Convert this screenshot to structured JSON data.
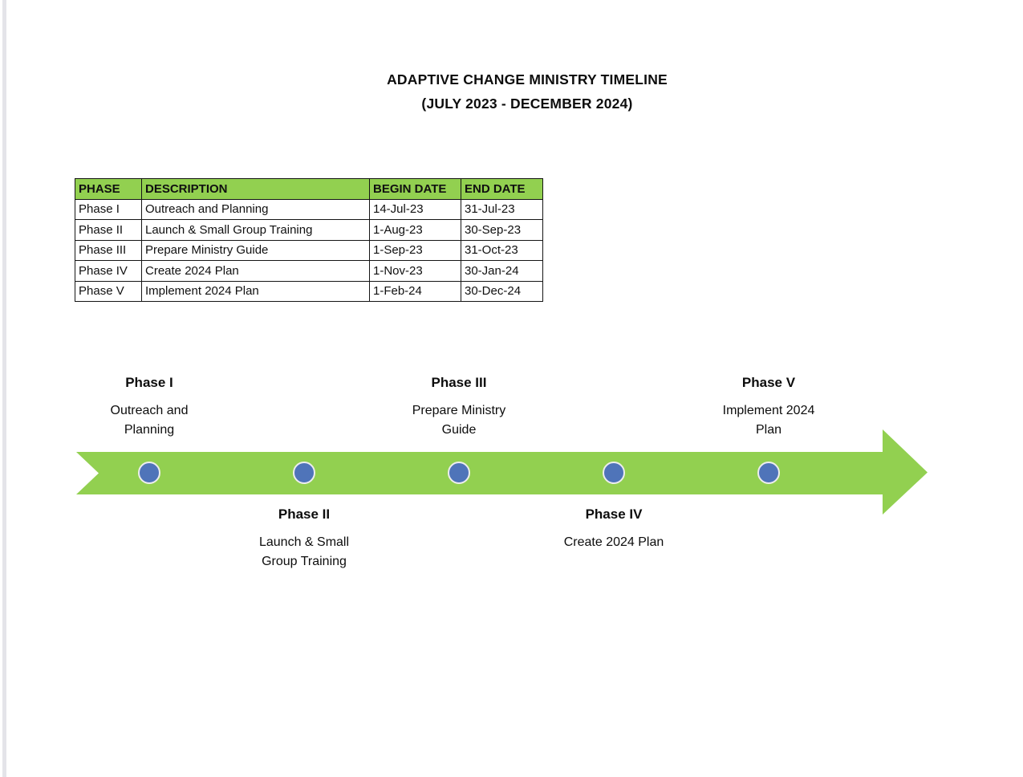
{
  "page": {
    "title_line1": "ADAPTIVE CHANGE MINISTRY TIMELINE",
    "title_line2": "(JULY 2023 - DECEMBER 2024)"
  },
  "table": {
    "headers": [
      "PHASE",
      "DESCRIPTION",
      "BEGIN DATE",
      "END DATE"
    ],
    "rows": [
      [
        "Phase I",
        "Outreach and Planning",
        "14-Jul-23",
        "31-Jul-23"
      ],
      [
        "Phase II",
        "Launch & Small Group Training",
        "1-Aug-23",
        "30-Sep-23"
      ],
      [
        "Phase III",
        "Prepare Ministry Guide",
        "1-Sep-23",
        "31-Oct-23"
      ],
      [
        "Phase IV",
        "Create 2024 Plan",
        "1-Nov-23",
        "30-Jan-24"
      ],
      [
        "Phase V",
        "Implement 2024 Plan",
        "1-Feb-24",
        "30-Dec-24"
      ]
    ]
  },
  "timeline": {
    "phases": [
      {
        "name": "Phase I",
        "description": "Outreach and\nPlanning",
        "side": "above"
      },
      {
        "name": "Phase II",
        "description": "Launch & Small\nGroup Training",
        "side": "below"
      },
      {
        "name": "Phase III",
        "description": "Prepare Ministry\nGuide",
        "side": "above"
      },
      {
        "name": "Phase IV",
        "description": "Create 2024 Plan",
        "side": "below"
      },
      {
        "name": "Phase V",
        "description": "Implement 2024\nPlan",
        "side": "above"
      }
    ]
  },
  "colors": {
    "arrow_green": "#92D050",
    "table_header_green": "#92D050",
    "marker_blue": "#4F74B9",
    "marker_border": "#EDEDED",
    "edge_strip_gray": "#E4E4E9"
  }
}
